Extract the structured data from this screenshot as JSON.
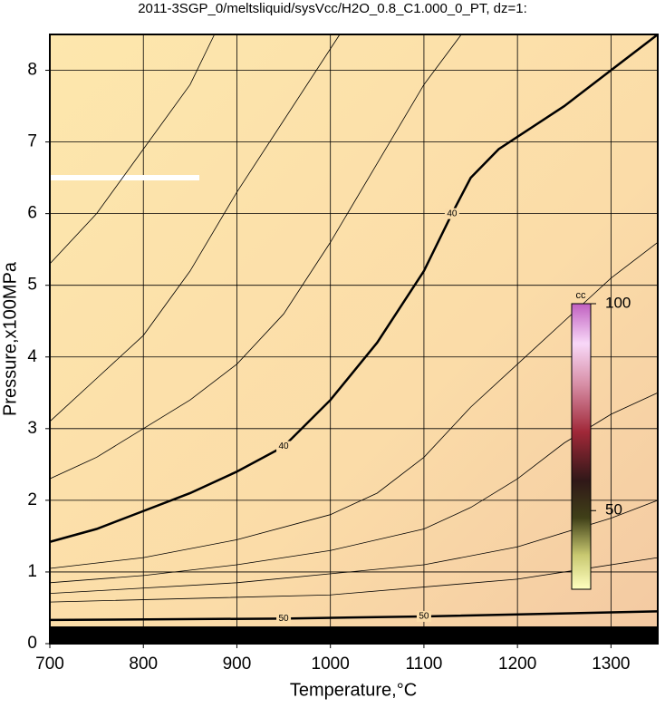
{
  "chart_data": {
    "type": "contour",
    "title": "2011-3SGP_0/meltsliquid/sysVcc/H2O_0.8_C1.000_0_PT, dz=1:",
    "x_label": "Temperature,°C",
    "y_label": "Pressure,x100MPa",
    "xlim": [
      700,
      1350
    ],
    "ylim": [
      0,
      8.5
    ],
    "xticks": [
      700,
      800,
      900,
      1000,
      1100,
      1200,
      1300
    ],
    "yticks": [
      0,
      1,
      2,
      3,
      4,
      5,
      6,
      7,
      8
    ],
    "grid": true,
    "colorbar": {
      "label": "cc",
      "zlim": [
        31,
        100
      ],
      "ticks": [
        50,
        100
      ]
    },
    "contours": [
      {
        "x": [
          700,
          750,
          800,
          850,
          876
        ],
        "y": [
          5.3,
          6.0,
          6.9,
          7.8,
          8.5
        ]
      },
      {
        "x": [
          700,
          750,
          800,
          850,
          900,
          950,
          1010
        ],
        "y": [
          3.1,
          3.7,
          4.3,
          5.2,
          6.3,
          7.3,
          8.5
        ]
      },
      {
        "x": [
          700,
          750,
          800,
          850,
          900,
          950,
          1000,
          1050,
          1100,
          1140
        ],
        "y": [
          2.3,
          2.6,
          3.0,
          3.4,
          3.9,
          4.6,
          5.6,
          6.7,
          7.8,
          8.5
        ]
      },
      {
        "level": 40,
        "x": [
          700,
          750,
          800,
          850,
          900,
          950,
          1000,
          1050,
          1100,
          1130,
          1150,
          1180,
          1250,
          1300,
          1350
        ],
        "y": [
          1.42,
          1.6,
          1.85,
          2.1,
          2.4,
          2.75,
          3.4,
          4.2,
          5.2,
          6.0,
          6.5,
          6.9,
          7.5,
          8.0,
          8.5
        ]
      },
      {
        "x": [
          700,
          800,
          900,
          1000,
          1050,
          1100,
          1150,
          1200,
          1250,
          1300,
          1350
        ],
        "y": [
          1.05,
          1.2,
          1.45,
          1.8,
          2.1,
          2.6,
          3.3,
          3.9,
          4.5,
          5.1,
          5.6
        ]
      },
      {
        "x": [
          700,
          800,
          900,
          1000,
          1100,
          1150,
          1200,
          1250,
          1300,
          1350
        ],
        "y": [
          0.85,
          0.95,
          1.1,
          1.3,
          1.6,
          1.9,
          2.3,
          2.8,
          3.2,
          3.5
        ]
      },
      {
        "x": [
          700,
          900,
          1100,
          1200,
          1300,
          1350
        ],
        "y": [
          0.7,
          0.85,
          1.1,
          1.35,
          1.75,
          2.0
        ]
      },
      {
        "x": [
          700,
          1000,
          1200,
          1350
        ],
        "y": [
          0.58,
          0.68,
          0.9,
          1.2
        ]
      },
      {
        "level": 50,
        "x": [
          700,
          950,
          1100,
          1350
        ],
        "y": [
          0.33,
          0.35,
          0.38,
          0.45
        ]
      }
    ]
  }
}
